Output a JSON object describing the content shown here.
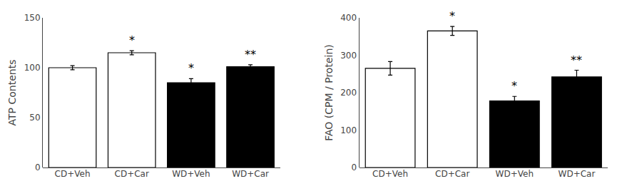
{
  "chart_data": [
    {
      "type": "bar",
      "ylabel": "ATP Contents",
      "categories": [
        "CD+Veh",
        "CD+Car",
        "WD+Veh",
        "WD+Car"
      ],
      "values": [
        100,
        115,
        85,
        101
      ],
      "errors": [
        2,
        2,
        4,
        2
      ],
      "colors": [
        "white",
        "white",
        "black",
        "black"
      ],
      "ylim": [
        0,
        150
      ],
      "yticks": [
        0,
        50,
        100,
        150
      ],
      "grid": false,
      "annotations": [
        {
          "x": "CD+Car",
          "text": "*"
        },
        {
          "x": "WD+Veh",
          "text": "*"
        },
        {
          "x": "WD+Car",
          "text": "**"
        }
      ]
    },
    {
      "type": "bar",
      "ylabel": "FAO (CPM / Protein)",
      "categories": [
        "CD+Veh",
        "CD+Car",
        "WD+Veh",
        "WD+Car"
      ],
      "values": [
        265,
        365,
        178,
        242
      ],
      "errors": [
        18,
        12,
        12,
        18
      ],
      "colors": [
        "white",
        "white",
        "black",
        "black"
      ],
      "ylim": [
        0,
        400
      ],
      "yticks": [
        0,
        100,
        200,
        300,
        400
      ],
      "grid": false,
      "annotations": [
        {
          "x": "CD+Car",
          "text": "*"
        },
        {
          "x": "WD+Veh",
          "text": "*"
        },
        {
          "x": "WD+Car",
          "text": "**"
        }
      ]
    }
  ]
}
